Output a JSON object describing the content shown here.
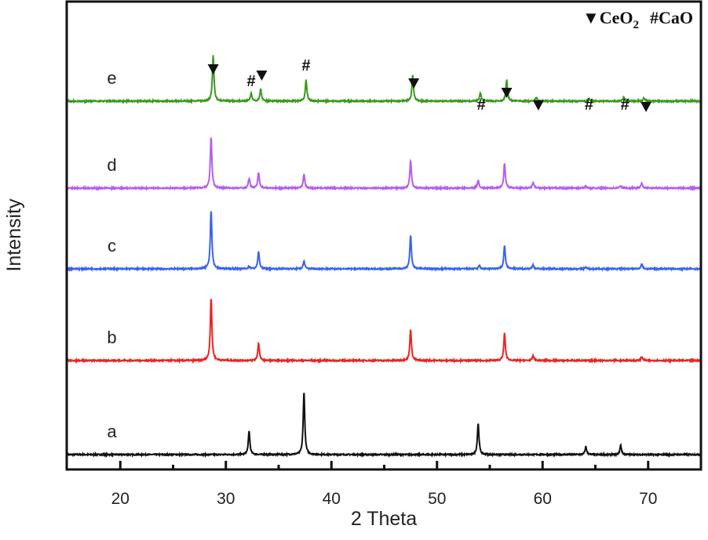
{
  "chart_data": {
    "type": "line",
    "title": "",
    "xlabel": "2 Theta",
    "ylabel": "Intensity",
    "xlim": [
      15,
      75
    ],
    "ylim": [
      0,
      600
    ],
    "xticks": [
      20,
      30,
      40,
      50,
      60,
      70
    ],
    "minor_xticks": [
      25,
      35,
      45,
      55,
      65
    ],
    "grid": false,
    "legend": {
      "position": "top-right",
      "items": [
        {
          "symbol": "▼",
          "label": "CeO",
          "subscript": "2"
        },
        {
          "symbol": "#",
          "label": "CaO"
        }
      ]
    },
    "series": [
      {
        "name": "a",
        "color": "#111111",
        "offset": 20,
        "peaks": [
          [
            32.2,
            30
          ],
          [
            37.4,
            80
          ],
          [
            53.9,
            40
          ],
          [
            64.1,
            10
          ],
          [
            67.4,
            12
          ]
        ]
      },
      {
        "name": "b",
        "color": "#ee2222",
        "offset": 140,
        "peaks": [
          [
            28.6,
            80
          ],
          [
            33.1,
            22
          ],
          [
            47.5,
            40
          ],
          [
            56.4,
            35
          ],
          [
            59.1,
            6
          ],
          [
            69.4,
            5
          ]
        ]
      },
      {
        "name": "c",
        "color": "#3a62f0",
        "offset": 257,
        "peaks": [
          [
            28.6,
            75
          ],
          [
            32.2,
            3
          ],
          [
            33.1,
            22
          ],
          [
            37.4,
            10
          ],
          [
            47.5,
            43
          ],
          [
            54.0,
            4
          ],
          [
            56.4,
            30
          ],
          [
            59.1,
            5
          ],
          [
            64.1,
            2
          ],
          [
            69.4,
            6
          ]
        ]
      },
      {
        "name": "d",
        "color": "#b35ef2",
        "offset": 360,
        "peaks": [
          [
            28.6,
            65
          ],
          [
            32.2,
            12
          ],
          [
            33.1,
            20
          ],
          [
            37.4,
            18
          ],
          [
            47.5,
            35
          ],
          [
            53.9,
            10
          ],
          [
            56.4,
            32
          ],
          [
            59.1,
            7
          ],
          [
            64.1,
            3
          ],
          [
            67.4,
            3
          ],
          [
            69.4,
            6
          ]
        ]
      },
      {
        "name": "e",
        "color": "#3a9a1c",
        "offset": 471,
        "peaks": [
          [
            28.8,
            58
          ],
          [
            32.4,
            10
          ],
          [
            33.3,
            15
          ],
          [
            37.6,
            27
          ],
          [
            47.7,
            33
          ],
          [
            54.1,
            11
          ],
          [
            56.6,
            27
          ],
          [
            59.4,
            5
          ],
          [
            64.4,
            3
          ],
          [
            67.7,
            5
          ],
          [
            69.6,
            4
          ]
        ]
      }
    ],
    "annotations": {
      "ceo2_markers": [
        [
          28.8,
          512
        ],
        [
          33.4,
          504
        ],
        [
          47.8,
          494
        ],
        [
          56.6,
          482
        ],
        [
          59.6,
          466
        ],
        [
          69.8,
          464
        ]
      ],
      "cao_markers": [
        [
          32.4,
          497
        ],
        [
          37.6,
          517
        ],
        [
          54.2,
          467
        ],
        [
          64.4,
          467
        ],
        [
          67.8,
          467
        ]
      ],
      "ceo2_symbol": "▼",
      "cao_symbol": "#"
    }
  }
}
